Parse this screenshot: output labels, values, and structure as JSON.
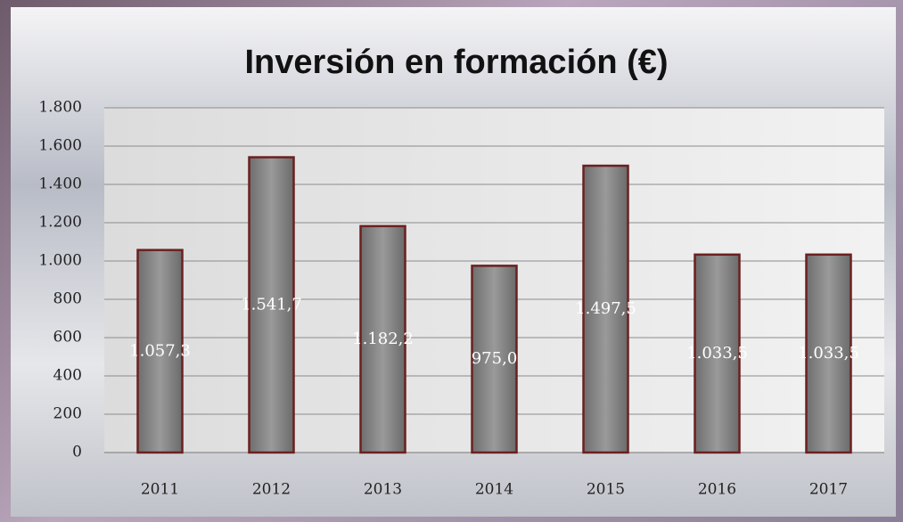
{
  "chart_data": {
    "type": "bar",
    "title": "Inversión en formación (€)",
    "categories": [
      "2011",
      "2012",
      "2013",
      "2014",
      "2015",
      "2016",
      "2017"
    ],
    "values": [
      1057.3,
      1541.7,
      1182.2,
      975.0,
      1497.5,
      1033.5,
      1033.5
    ],
    "value_labels": [
      "1.057,3",
      "1.541,7",
      "1.182,2",
      "975,0",
      "1.497,5",
      "1.033,5",
      "1.033,5"
    ],
    "color": "#7f7f7f",
    "ylim": [
      0,
      1800
    ],
    "yticks": [
      0,
      200,
      400,
      600,
      800,
      {
        "value": 1000,
        "label": "1.000"
      },
      {
        "value": 1200,
        "label": "1.200"
      },
      {
        "value": 1400,
        "label": "1.400"
      },
      {
        "value": 1600,
        "label": "1.600"
      },
      {
        "value": 1800,
        "label": "1.800"
      }
    ],
    "grid": true
  }
}
